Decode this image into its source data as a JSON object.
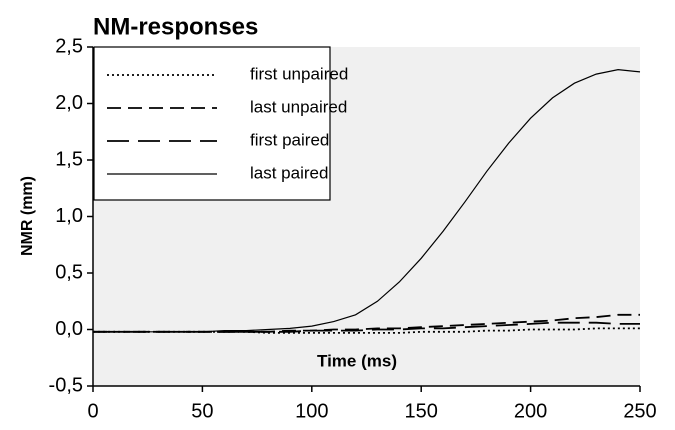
{
  "chart_data": {
    "type": "line",
    "title": "NM-responses",
    "x_label": "Time (ms)",
    "y_label": "NMR (mm)",
    "x": [
      0,
      10,
      20,
      30,
      40,
      50,
      60,
      70,
      80,
      90,
      100,
      110,
      120,
      130,
      140,
      150,
      160,
      170,
      180,
      190,
      200,
      210,
      220,
      230,
      240,
      250
    ],
    "series": [
      {
        "name": "first unpaired",
        "color": "#000000",
        "dash": "dotted",
        "values": [
          -0.02,
          -0.02,
          -0.02,
          -0.02,
          -0.02,
          -0.02,
          -0.02,
          -0.02,
          -0.03,
          -0.03,
          -0.03,
          -0.03,
          -0.03,
          -0.03,
          -0.03,
          -0.02,
          -0.02,
          -0.02,
          -0.01,
          -0.01,
          0,
          0,
          0,
          0.01,
          0.01,
          0.01
        ]
      },
      {
        "name": "last unpaired",
        "color": "#000000",
        "dash": "dashed",
        "values": [
          -0.02,
          -0.02,
          -0.02,
          -0.02,
          -0.02,
          -0.02,
          -0.02,
          -0.02,
          -0.02,
          -0.01,
          -0.01,
          0,
          0,
          0.01,
          0.01,
          0.02,
          0.03,
          0.04,
          0.05,
          0.06,
          0.07,
          0.08,
          0.1,
          0.11,
          0.13,
          0.13
        ]
      },
      {
        "name": "first paired",
        "color": "#000000",
        "dash": "longdash",
        "values": [
          -0.02,
          -0.02,
          -0.02,
          -0.02,
          -0.02,
          -0.02,
          -0.02,
          -0.02,
          -0.02,
          -0.02,
          -0.01,
          -0.01,
          -0.01,
          0,
          0,
          0.01,
          0.01,
          0.02,
          0.03,
          0.04,
          0.05,
          0.06,
          0.06,
          0.06,
          0.05,
          0.05
        ]
      },
      {
        "name": "last paired",
        "color": "#000000",
        "dash": "solid",
        "values": [
          -0.02,
          -0.02,
          -0.02,
          -0.02,
          -0.02,
          -0.02,
          -0.01,
          -0.01,
          0,
          0.01,
          0.03,
          0.07,
          0.13,
          0.25,
          0.42,
          0.63,
          0.87,
          1.13,
          1.4,
          1.65,
          1.87,
          2.05,
          2.18,
          2.26,
          2.3,
          2.28
        ]
      }
    ],
    "xlim": [
      0,
      250
    ],
    "xticks": [
      0,
      50,
      100,
      150,
      200,
      250
    ],
    "ylim": [
      -0.5,
      2.5
    ],
    "yticks": [
      {
        "value": -0.5,
        "label": "-0,5"
      },
      {
        "value": 0,
        "label": "0,0"
      },
      {
        "value": 0.5,
        "label": "0,5"
      },
      {
        "value": 1,
        "label": "1,0"
      },
      {
        "value": 1.5,
        "label": "1,5"
      },
      {
        "value": 2,
        "label": "2,0"
      },
      {
        "value": 2.5,
        "label": "2,5"
      }
    ],
    "legend": "upper-left"
  }
}
